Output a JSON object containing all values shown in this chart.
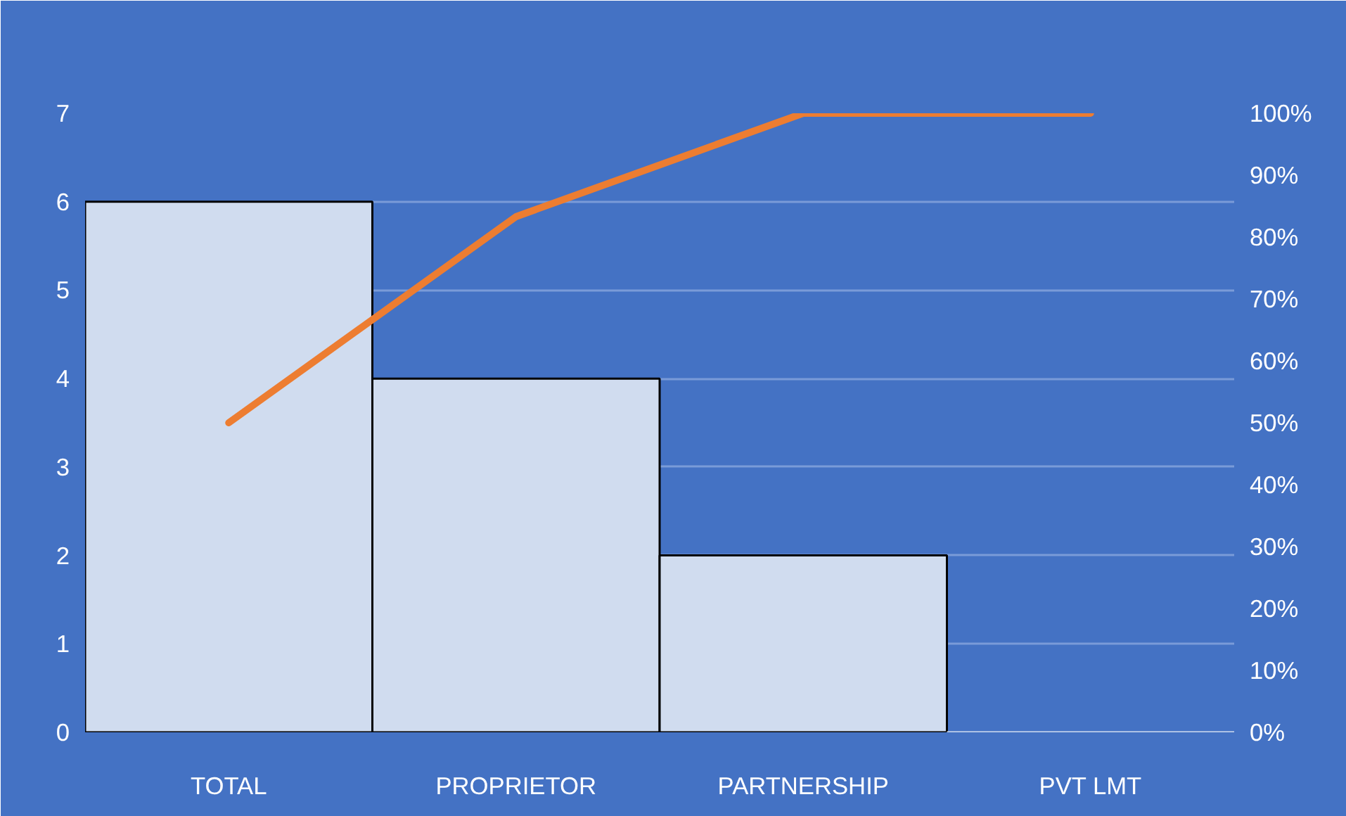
{
  "chart_data": {
    "type": "bar",
    "categories": [
      "TOTAL",
      "PROPRIETOR",
      "PARTNERSHIP",
      "PVT LMT"
    ],
    "series": [
      {
        "color": "#d0dcef",
        "values": [
          6,
          4,
          2,
          0
        ]
      },
      {
        "type": "line",
        "axis": "y2",
        "color": "#ed7d31",
        "values": [
          50,
          83.3,
          100,
          100
        ]
      }
    ],
    "ylim": [
      0,
      7
    ],
    "yticks": [
      0,
      1,
      2,
      3,
      4,
      5,
      6,
      7
    ],
    "y2lim": [
      0,
      100
    ],
    "y2ticks": [
      {
        "value": 0,
        "label": "0%"
      },
      {
        "value": 10,
        "label": "10%"
      },
      {
        "value": 20,
        "label": "20%"
      },
      {
        "value": 30,
        "label": "30%"
      },
      {
        "value": 40,
        "label": "40%"
      },
      {
        "value": 50,
        "label": "50%"
      },
      {
        "value": 60,
        "label": "60%"
      },
      {
        "value": 70,
        "label": "70%"
      },
      {
        "value": 80,
        "label": "80%"
      },
      {
        "value": 90,
        "label": "90%"
      },
      {
        "value": 100,
        "label": "100%"
      }
    ],
    "grid": "y",
    "line_style": "solid",
    "marker": "none"
  }
}
